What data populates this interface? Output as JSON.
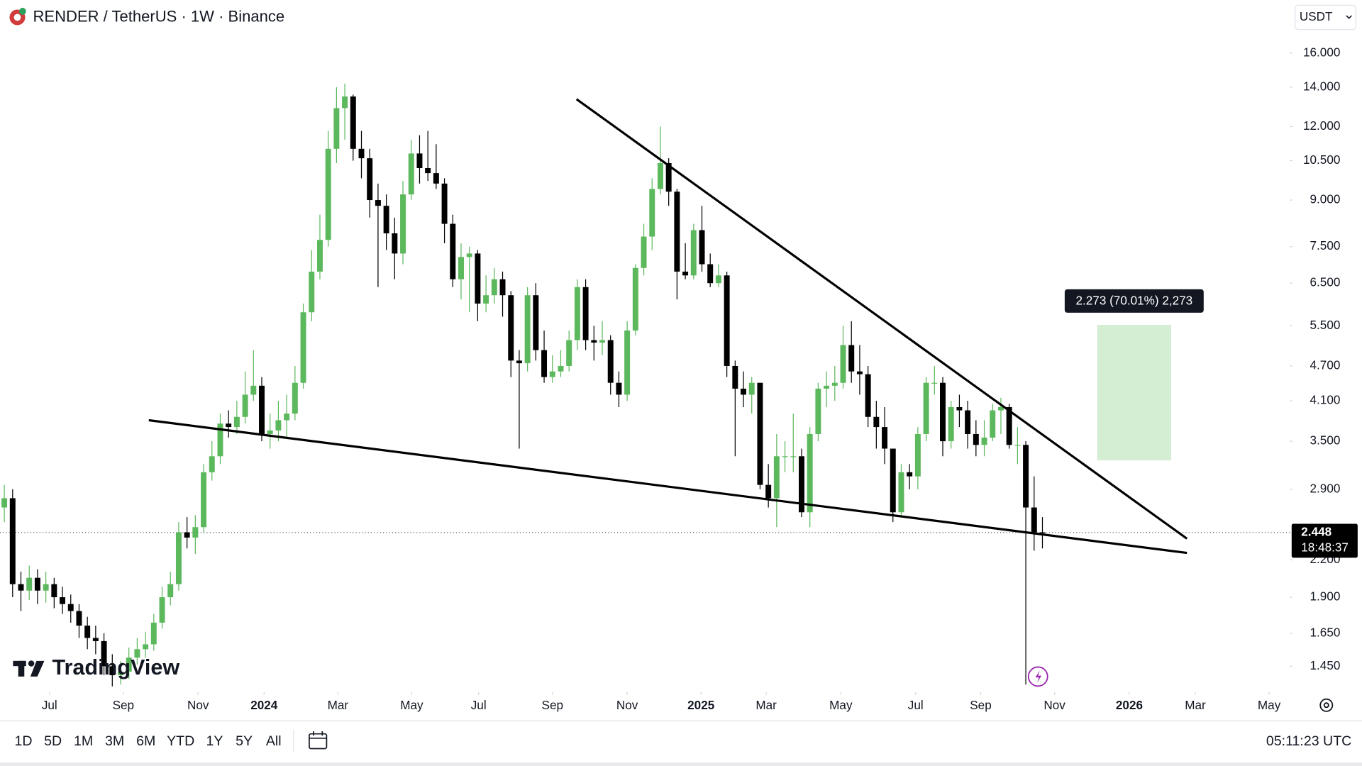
{
  "header": {
    "symbol": "RENDER / TetherUS · 1W · Binance",
    "currency": "USDT"
  },
  "chart_data": {
    "type": "candlestick",
    "log": true,
    "grid": false,
    "up_color": "#5cb85c",
    "down_color": "#000000",
    "open": [
      2.7,
      2.8,
      2.0,
      1.95,
      2.05,
      1.95,
      2.0,
      1.9,
      1.85,
      1.8,
      1.7,
      1.62,
      1.6,
      1.45,
      1.4,
      1.42,
      1.5,
      1.55,
      1.58,
      1.72,
      1.9,
      2.0,
      2.45,
      2.4,
      2.5,
      3.1,
      3.3,
      3.75,
      3.7,
      3.85,
      4.2,
      4.35,
      3.6,
      3.65,
      3.8,
      3.9,
      4.4,
      5.8,
      6.8,
      7.7,
      11.0,
      12.9,
      13.5,
      11.0,
      10.6,
      9.0,
      8.8,
      7.9,
      7.3,
      9.2,
      10.8,
      10.2,
      10.0,
      9.6,
      8.2,
      6.6,
      7.2,
      7.3,
      6.0,
      6.2,
      6.6,
      6.2,
      4.8,
      4.75,
      6.2,
      5.0,
      4.5,
      4.6,
      4.7,
      5.2,
      6.4,
      5.2,
      5.15,
      5.2,
      4.4,
      4.2,
      5.4,
      6.9,
      7.8,
      9.4,
      10.4,
      9.3,
      6.8,
      6.7,
      8.0,
      7.0,
      6.5,
      6.7,
      4.7,
      4.3,
      4.2,
      4.4,
      2.95,
      2.8,
      3.3,
      3.3,
      3.3,
      2.65,
      3.6,
      4.3,
      4.35,
      4.4,
      5.1,
      4.6,
      4.55,
      3.85,
      3.7,
      3.4,
      2.65,
      3.1,
      3.05,
      3.6,
      4.4,
      4.4,
      3.5,
      4.0,
      3.95,
      3.6,
      3.45,
      3.55,
      3.95,
      4.0,
      3.45,
      3.45,
      2.7,
      2.45
    ],
    "high": [
      2.95,
      2.9,
      2.1,
      2.15,
      2.12,
      2.1,
      2.05,
      1.98,
      1.92,
      1.85,
      1.76,
      1.7,
      1.65,
      1.52,
      1.48,
      1.56,
      1.62,
      1.66,
      1.78,
      1.98,
      2.1,
      2.55,
      2.6,
      2.62,
      3.2,
      3.5,
      3.9,
      3.95,
      4.1,
      4.6,
      5.0,
      4.5,
      3.9,
      4.1,
      4.2,
      4.7,
      6.0,
      7.4,
      8.5,
      11.8,
      14.0,
      14.2,
      13.6,
      11.8,
      11.0,
      9.6,
      9.2,
      8.4,
      9.7,
      11.4,
      11.6,
      11.8,
      11.2,
      9.8,
      8.5,
      7.6,
      7.5,
      7.4,
      6.7,
      6.9,
      6.8,
      6.3,
      5.0,
      6.4,
      6.5,
      5.4,
      4.9,
      5.0,
      5.4,
      6.6,
      6.6,
      5.5,
      5.6,
      5.3,
      4.6,
      5.6,
      7.0,
      8.2,
      9.8,
      12.0,
      10.6,
      9.4,
      7.6,
      8.2,
      8.8,
      7.3,
      7.0,
      6.8,
      4.8,
      4.6,
      4.5,
      4.4,
      3.2,
      3.6,
      3.5,
      3.9,
      3.4,
      3.7,
      4.4,
      4.6,
      4.7,
      5.5,
      5.6,
      5.1,
      4.7,
      4.1,
      4.0,
      3.4,
      3.2,
      3.2,
      3.7,
      4.5,
      4.7,
      4.5,
      4.1,
      4.2,
      4.1,
      3.8,
      3.8,
      4.05,
      4.15,
      4.05,
      3.7,
      3.5,
      3.05,
      2.6
    ],
    "low": [
      2.55,
      1.9,
      1.8,
      1.88,
      1.85,
      1.86,
      1.82,
      1.78,
      1.72,
      1.62,
      1.55,
      1.52,
      1.4,
      1.34,
      1.35,
      1.38,
      1.46,
      1.5,
      1.54,
      1.68,
      1.84,
      1.95,
      2.3,
      2.25,
      2.45,
      3.0,
      3.2,
      3.55,
      3.6,
      3.75,
      4.1,
      3.5,
      3.4,
      3.5,
      3.55,
      3.8,
      4.3,
      5.6,
      6.6,
      7.5,
      10.4,
      11.4,
      10.5,
      9.8,
      8.4,
      6.4,
      7.4,
      6.6,
      7.0,
      9.0,
      9.6,
      9.7,
      9.4,
      7.6,
      6.4,
      6.1,
      5.8,
      5.6,
      5.8,
      6.0,
      5.7,
      4.5,
      3.4,
      4.6,
      4.8,
      4.4,
      4.4,
      4.5,
      4.6,
      5.0,
      5.0,
      4.8,
      4.9,
      4.2,
      4.0,
      4.1,
      5.3,
      6.7,
      7.4,
      9.2,
      8.8,
      6.1,
      6.6,
      6.6,
      6.8,
      6.4,
      6.4,
      4.5,
      3.3,
      4.0,
      3.9,
      2.9,
      2.7,
      2.5,
      3.1,
      3.1,
      2.6,
      2.5,
      3.5,
      4.0,
      4.1,
      4.3,
      4.4,
      4.2,
      3.7,
      3.4,
      3.2,
      2.55,
      2.6,
      2.9,
      2.9,
      3.5,
      4.2,
      3.3,
      3.4,
      3.7,
      3.4,
      3.3,
      3.3,
      3.5,
      3.6,
      3.4,
      3.2,
      1.35,
      2.28,
      2.3
    ],
    "close": [
      2.8,
      2.0,
      1.95,
      2.05,
      1.95,
      2.0,
      1.9,
      1.85,
      1.8,
      1.7,
      1.62,
      1.6,
      1.45,
      1.4,
      1.42,
      1.5,
      1.55,
      1.58,
      1.72,
      1.9,
      2.0,
      2.45,
      2.4,
      2.5,
      3.1,
      3.3,
      3.75,
      3.7,
      3.85,
      4.2,
      4.35,
      3.6,
      3.65,
      3.8,
      3.9,
      4.4,
      5.8,
      6.8,
      7.7,
      11.0,
      12.9,
      13.5,
      11.0,
      10.6,
      9.0,
      8.8,
      7.9,
      7.3,
      9.2,
      10.8,
      10.2,
      10.0,
      9.6,
      8.2,
      6.6,
      7.2,
      7.3,
      6.0,
      6.2,
      6.6,
      6.2,
      4.8,
      4.75,
      6.2,
      5.0,
      4.5,
      4.6,
      4.7,
      5.2,
      6.4,
      5.2,
      5.15,
      5.2,
      4.4,
      4.2,
      5.4,
      6.9,
      7.8,
      9.4,
      10.4,
      9.3,
      6.8,
      6.7,
      8.0,
      7.0,
      6.5,
      6.7,
      4.7,
      4.3,
      4.2,
      4.4,
      2.95,
      2.8,
      3.3,
      3.3,
      3.3,
      2.65,
      3.6,
      4.3,
      4.35,
      4.4,
      5.1,
      4.6,
      4.55,
      3.85,
      3.7,
      3.4,
      2.65,
      3.1,
      3.05,
      3.6,
      4.4,
      4.4,
      3.5,
      4.0,
      3.95,
      3.6,
      3.45,
      3.55,
      3.95,
      4.0,
      3.45,
      3.45,
      2.7,
      2.45,
      2.448
    ],
    "xlim": [
      -0.52,
      154.8
    ],
    "xticks": [
      {
        "value": 5.44,
        "label": "Jul"
      },
      {
        "value": 14.33,
        "label": "Sep"
      },
      {
        "value": 23.33,
        "label": "Nov"
      },
      {
        "value": 31.28,
        "label": "2024"
      },
      {
        "value": 40.17,
        "label": "Mar"
      },
      {
        "value": 49.06,
        "label": "May"
      },
      {
        "value": 57.11,
        "label": "Jul"
      },
      {
        "value": 66.0,
        "label": "Sep"
      },
      {
        "value": 75.0,
        "label": "Nov"
      },
      {
        "value": 83.89,
        "label": "2025"
      },
      {
        "value": 91.74,
        "label": "Mar"
      },
      {
        "value": 100.73,
        "label": "May"
      },
      {
        "value": 109.73,
        "label": "Jul"
      },
      {
        "value": 117.57,
        "label": "Sep"
      },
      {
        "value": 126.46,
        "label": "Nov"
      },
      {
        "value": 135.46,
        "label": "2026"
      },
      {
        "value": 143.41,
        "label": "Mar"
      },
      {
        "value": 152.3,
        "label": "May"
      }
    ],
    "ylim": [
      1.31,
      19.7
    ],
    "yticks": [
      {
        "value": 16,
        "label": "16.000"
      },
      {
        "value": 14,
        "label": "14.000"
      },
      {
        "value": 12,
        "label": "12.000"
      },
      {
        "value": 10.5,
        "label": "10.500"
      },
      {
        "value": 9,
        "label": "9.000"
      },
      {
        "value": 7.5,
        "label": "7.500"
      },
      {
        "value": 6.5,
        "label": "6.500"
      },
      {
        "value": 5.5,
        "label": "5.500"
      },
      {
        "value": 4.7,
        "label": "4.700"
      },
      {
        "value": 4.1,
        "label": "4.100"
      },
      {
        "value": 3.5,
        "label": "3.500"
      },
      {
        "value": 2.9,
        "label": "2.900"
      },
      {
        "value": 2.2,
        "label": "2.200"
      },
      {
        "value": 1.9,
        "label": "1.900"
      },
      {
        "value": 1.65,
        "label": "1.650"
      },
      {
        "value": 1.45,
        "label": "1.450"
      }
    ],
    "last_price": {
      "value": 2.448,
      "countdown": "18:48:37"
    },
    "trendlines": [
      {
        "x": [
          68.9,
          142.4
        ],
        "y": [
          13.36,
          2.39
        ]
      },
      {
        "x": [
          17.4,
          142.4
        ],
        "y": [
          3.8,
          2.26
        ]
      }
    ],
    "range_box": {
      "x": [
        131.6,
        140.5
      ],
      "y": [
        3.247,
        5.52
      ],
      "color": "#d4eed3",
      "label": "2.273 (70.01%) 2,273"
    },
    "watermark": "TradingView"
  },
  "toolbar": {
    "ranges": [
      "1D",
      "5D",
      "1M",
      "3M",
      "6M",
      "YTD",
      "1Y",
      "5Y",
      "All"
    ],
    "time": "05:11:23 UTC"
  }
}
